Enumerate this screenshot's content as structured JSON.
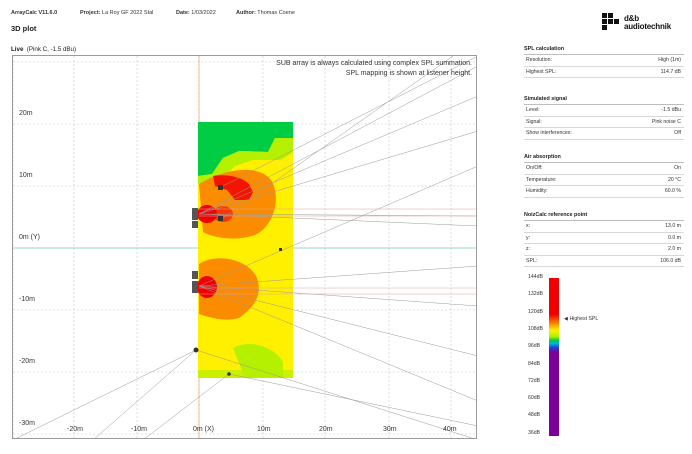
{
  "header": {
    "app": "ArrayCalc V11.6.0",
    "project_label": "Project:",
    "project": "La Roy GF 2022 Stal",
    "date_label": "Date:",
    "date": "1/03/2022",
    "author_label": "Author:",
    "author": "Thomas Coene",
    "page_title": "3D plot",
    "brand_line1": "d&b",
    "brand_line2": "audiotechnik"
  },
  "plot": {
    "title_bold": "Live",
    "title_detail": "(Pink C, -1.5 dBu)",
    "note_line1": "SUB array is always calculated using complex SPL summation.",
    "note_line2": "SPL mapping is shown at listener height.",
    "x_ticks": [
      "-20m",
      "-10m",
      "0m (X)",
      "10m",
      "20m",
      "30m",
      "40m"
    ],
    "y_ticks": [
      "20m",
      "10m",
      "0m (Y)",
      "-10m",
      "-20m",
      "-30m"
    ],
    "colors": {
      "grid": "#c4c4c4",
      "red": "#f20000",
      "orange": "#fb8c00",
      "yellow": "#fff000",
      "yellow_green": "#b4f000",
      "green": "#00cc44"
    }
  },
  "panels": [
    {
      "title": "SPL calculation",
      "rows": [
        {
          "k": "Resolution:",
          "v": "High (1m)"
        },
        {
          "k": "Highest SPL:",
          "v": "114.7 dB"
        }
      ]
    },
    {
      "title": "Simulated signal",
      "rows": [
        {
          "k": "Level:",
          "v": "-1.5 dBu"
        },
        {
          "k": "Signal:",
          "v": "Pink noise C"
        },
        {
          "k": "Show interferences:",
          "v": "Off"
        }
      ]
    },
    {
      "title": "Air absorption",
      "rows": [
        {
          "k": "On/Off:",
          "v": "On"
        },
        {
          "k": "Temperature:",
          "v": "20 °C"
        },
        {
          "k": "Humidity:",
          "v": "60.0 %"
        }
      ]
    },
    {
      "title": "NoizCalc reference point",
      "rows": [
        {
          "k": "x:",
          "v": "13.0 m"
        },
        {
          "k": "y:",
          "v": "0.0 m"
        },
        {
          "k": "z:",
          "v": "2.0 m"
        },
        {
          "k": "SPL:",
          "v": "106.0 dB"
        }
      ]
    }
  ],
  "scale": {
    "labels": [
      "144dB",
      "132dB",
      "120dB",
      "108dB",
      "96dB",
      "84dB",
      "72dB",
      "60dB",
      "48dB",
      "36dB"
    ],
    "highest_label": "Highest SPL",
    "highest_value_db": 114.7
  }
}
